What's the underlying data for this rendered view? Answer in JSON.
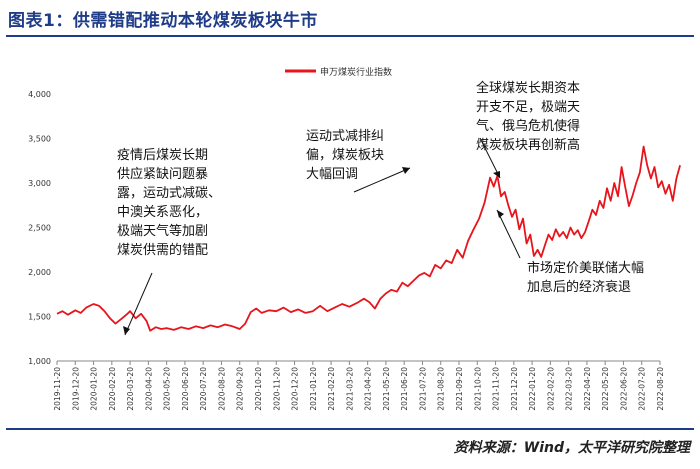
{
  "figure": {
    "title": "图表1：供需错配推动本轮煤炭板块牛市",
    "source": "资料来源：Wind，太平洋研究院整理"
  },
  "chart_data": {
    "type": "line",
    "title": "",
    "xlabel": "",
    "ylabel": "",
    "ylim": [
      1000,
      4000
    ],
    "y_ticks": [
      "1,000",
      "1,500",
      "2,000",
      "2,500",
      "3,000",
      "3,500",
      "4,000"
    ],
    "x_ticks": [
      "2019-11-20",
      "2019-12-20",
      "2020-01-20",
      "2020-02-20",
      "2020-03-20",
      "2020-04-20",
      "2020-05-20",
      "2020-06-20",
      "2020-07-20",
      "2020-08-20",
      "2020-09-20",
      "2020-10-20",
      "2020-11-20",
      "2020-12-20",
      "2021-01-20",
      "2021-02-20",
      "2021-03-20",
      "2021-04-20",
      "2021-05-20",
      "2021-06-20",
      "2021-07-20",
      "2021-08-20",
      "2021-09-20",
      "2021-10-20",
      "2021-11-20",
      "2021-12-20",
      "2022-01-20",
      "2022-02-20",
      "2022-03-20",
      "2022-04-20",
      "2022-05-20",
      "2022-06-20",
      "2022-07-20",
      "2022-08-20"
    ],
    "legend": {
      "position": "top-center"
    },
    "series": [
      {
        "name": "申万煤炭行业指数",
        "color": "#e8141b",
        "x_unit": "months since 2019-11-20",
        "points": [
          [
            0,
            1530
          ],
          [
            0.3,
            1560
          ],
          [
            0.6,
            1520
          ],
          [
            1,
            1570
          ],
          [
            1.3,
            1540
          ],
          [
            1.6,
            1600
          ],
          [
            2,
            1640
          ],
          [
            2.3,
            1620
          ],
          [
            2.6,
            1560
          ],
          [
            2.9,
            1480
          ],
          [
            3.2,
            1420
          ],
          [
            3.5,
            1470
          ],
          [
            3.8,
            1520
          ],
          [
            4,
            1560
          ],
          [
            4.3,
            1480
          ],
          [
            4.6,
            1530
          ],
          [
            4.9,
            1450
          ],
          [
            5.1,
            1340
          ],
          [
            5.4,
            1380
          ],
          [
            5.7,
            1360
          ],
          [
            6,
            1370
          ],
          [
            6.4,
            1350
          ],
          [
            6.8,
            1380
          ],
          [
            7.2,
            1360
          ],
          [
            7.6,
            1390
          ],
          [
            8,
            1370
          ],
          [
            8.4,
            1400
          ],
          [
            8.8,
            1380
          ],
          [
            9.2,
            1410
          ],
          [
            9.6,
            1390
          ],
          [
            10,
            1360
          ],
          [
            10.3,
            1420
          ],
          [
            10.6,
            1550
          ],
          [
            10.9,
            1590
          ],
          [
            11.2,
            1540
          ],
          [
            11.6,
            1570
          ],
          [
            12,
            1560
          ],
          [
            12.4,
            1600
          ],
          [
            12.8,
            1550
          ],
          [
            13.2,
            1580
          ],
          [
            13.6,
            1540
          ],
          [
            14,
            1560
          ],
          [
            14.4,
            1620
          ],
          [
            14.8,
            1560
          ],
          [
            15.2,
            1600
          ],
          [
            15.6,
            1640
          ],
          [
            16,
            1610
          ],
          [
            16.4,
            1650
          ],
          [
            16.8,
            1700
          ],
          [
            17.1,
            1660
          ],
          [
            17.4,
            1590
          ],
          [
            17.7,
            1700
          ],
          [
            18,
            1760
          ],
          [
            18.3,
            1800
          ],
          [
            18.6,
            1780
          ],
          [
            18.9,
            1880
          ],
          [
            19.2,
            1840
          ],
          [
            19.5,
            1900
          ],
          [
            19.8,
            1960
          ],
          [
            20.1,
            1990
          ],
          [
            20.4,
            1950
          ],
          [
            20.7,
            2080
          ],
          [
            21,
            2040
          ],
          [
            21.3,
            2130
          ],
          [
            21.6,
            2100
          ],
          [
            21.9,
            2250
          ],
          [
            22.2,
            2160
          ],
          [
            22.5,
            2350
          ],
          [
            22.8,
            2480
          ],
          [
            23.1,
            2600
          ],
          [
            23.4,
            2780
          ],
          [
            23.7,
            3060
          ],
          [
            23.9,
            2960
          ],
          [
            24.1,
            3080
          ],
          [
            24.3,
            2850
          ],
          [
            24.5,
            2900
          ],
          [
            24.7,
            2750
          ],
          [
            24.9,
            2620
          ],
          [
            25.1,
            2700
          ],
          [
            25.3,
            2480
          ],
          [
            25.5,
            2600
          ],
          [
            25.7,
            2320
          ],
          [
            25.9,
            2420
          ],
          [
            26.1,
            2180
          ],
          [
            26.3,
            2250
          ],
          [
            26.5,
            2170
          ],
          [
            26.7,
            2300
          ],
          [
            26.9,
            2420
          ],
          [
            27.1,
            2360
          ],
          [
            27.3,
            2480
          ],
          [
            27.5,
            2400
          ],
          [
            27.7,
            2450
          ],
          [
            27.9,
            2380
          ],
          [
            28.1,
            2500
          ],
          [
            28.3,
            2420
          ],
          [
            28.5,
            2470
          ],
          [
            28.7,
            2380
          ],
          [
            28.9,
            2450
          ],
          [
            29.1,
            2570
          ],
          [
            29.3,
            2700
          ],
          [
            29.5,
            2640
          ],
          [
            29.7,
            2800
          ],
          [
            29.9,
            2720
          ],
          [
            30.1,
            2940
          ],
          [
            30.3,
            2800
          ],
          [
            30.5,
            3000
          ],
          [
            30.7,
            2850
          ],
          [
            30.9,
            3180
          ],
          [
            31.1,
            2950
          ],
          [
            31.3,
            2740
          ],
          [
            31.5,
            2860
          ],
          [
            31.7,
            3000
          ],
          [
            31.9,
            3120
          ],
          [
            32.1,
            3410
          ],
          [
            32.3,
            3200
          ],
          [
            32.5,
            3050
          ],
          [
            32.7,
            3180
          ],
          [
            32.9,
            2950
          ],
          [
            33.1,
            3020
          ],
          [
            33.3,
            2880
          ],
          [
            33.5,
            2980
          ],
          [
            33.7,
            2800
          ],
          [
            33.9,
            3050
          ],
          [
            34.1,
            3200
          ]
        ]
      }
    ],
    "annotations": [
      {
        "text": "疫情后煤炭长期供应紧缺问题暴露，运动式减碳、中澳关系恶化，极端天气等加剧煤炭供需的错配"
      },
      {
        "text": "运动式减排纠偏，煤炭板块大幅回调"
      },
      {
        "text": "全球煤炭长期资本开支不足，极端天气、俄乌危机使得煤炭板块再创新高"
      },
      {
        "text": "市场定价美联储大幅加息后的经济衰退"
      }
    ]
  },
  "annotation_lines": {
    "a1": [
      "疫情后煤炭长期",
      "供应紧缺问题暴",
      "露，运动式减碳、",
      "中澳关系恶化，",
      "极端天气等加剧",
      "煤炭供需的错配"
    ],
    "a2": [
      "运动式减排纠",
      "偏，煤炭板块",
      "大幅回调"
    ],
    "a3": [
      "全球煤炭长期资本",
      "开支不足，极端天",
      "气、俄乌危机使得",
      "煤炭板块再创新高"
    ],
    "a4": [
      "市场定价美联储大幅",
      "加息后的经济衰退"
    ]
  }
}
